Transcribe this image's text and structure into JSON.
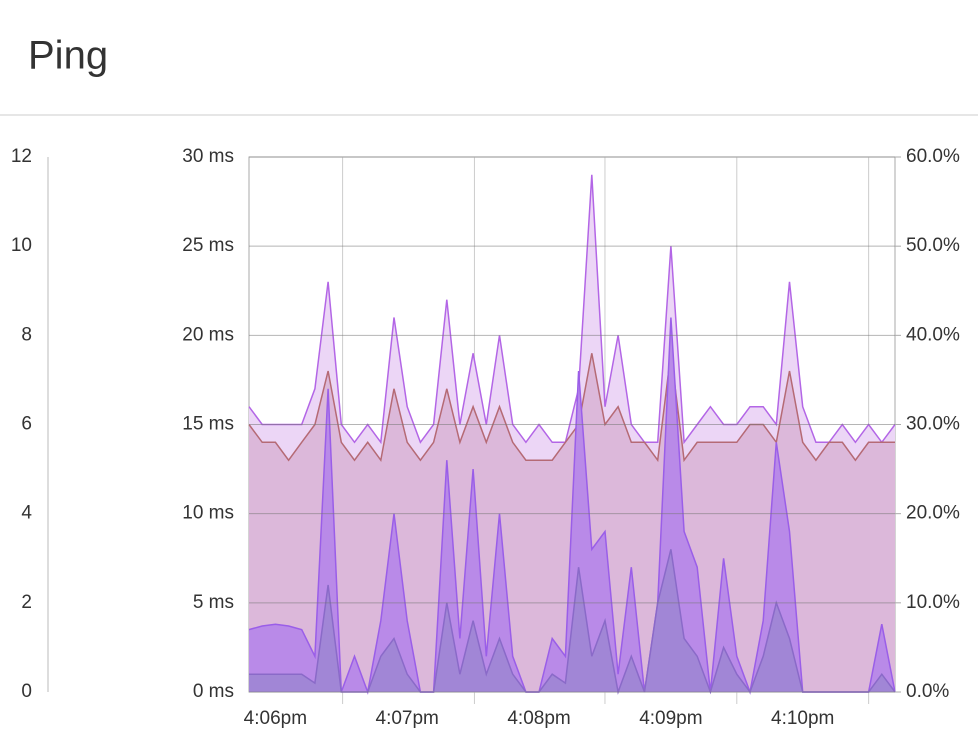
{
  "header": {
    "title": "Ping"
  },
  "chart_data": {
    "type": "area",
    "categories": [
      null,
      null,
      "4:06pm",
      null,
      null,
      null,
      null,
      null,
      null,
      null,
      null,
      null,
      "4:07pm",
      null,
      null,
      null,
      null,
      null,
      null,
      null,
      null,
      null,
      "4:08pm",
      null,
      null,
      null,
      null,
      null,
      null,
      null,
      null,
      null,
      "4:09pm",
      null,
      null,
      null,
      null,
      null,
      null,
      null,
      null,
      null,
      "4:10pm",
      null,
      null,
      null,
      null,
      null,
      null,
      null
    ],
    "ylim": [
      0,
      30
    ],
    "yticks": [
      {
        "value": 0,
        "label": "0 ms"
      },
      {
        "value": 5,
        "label": "5 ms"
      },
      {
        "value": 10,
        "label": "10 ms"
      },
      {
        "value": 15,
        "label": "15 ms"
      },
      {
        "value": 20,
        "label": "20 ms"
      },
      {
        "value": 25,
        "label": "25 ms"
      },
      {
        "value": 30,
        "label": "30 ms"
      }
    ],
    "y2lim": [
      0,
      60
    ],
    "y2ticks": [
      {
        "value": 0,
        "label": "0.0%"
      },
      {
        "value": 10,
        "label": "10.0%"
      },
      {
        "value": 20,
        "label": "20.0%"
      },
      {
        "value": 30,
        "label": "30.0%"
      },
      {
        "value": 40,
        "label": "40.0%"
      },
      {
        "value": 50,
        "label": "50.0%"
      },
      {
        "value": 60,
        "label": "60.0%"
      }
    ],
    "y3lim": [
      0,
      12
    ],
    "y3ticks": [
      0,
      2,
      4,
      6,
      8,
      10,
      12
    ],
    "grid": true,
    "series": [
      {
        "color": "#b366e6",
        "fill": "#ecd6f6",
        "values": [
          16,
          15,
          15,
          15,
          15,
          17,
          23,
          15,
          14,
          15,
          14,
          21,
          16,
          14,
          15,
          22,
          15,
          19,
          15,
          20,
          15,
          14,
          15,
          14,
          14,
          17,
          29,
          16,
          20,
          15,
          14,
          14,
          25,
          14,
          15,
          16,
          15,
          15,
          16,
          16,
          15,
          23,
          16,
          14,
          14,
          15,
          14,
          15,
          14,
          15
        ]
      },
      {
        "color": "#b56a75",
        "fill": "#dcb8da",
        "values": [
          15,
          14,
          14,
          13,
          14,
          15,
          18,
          14,
          13,
          14,
          13,
          17,
          14,
          13,
          14,
          17,
          14,
          16,
          14,
          16,
          14,
          13,
          13,
          13,
          14,
          15,
          19,
          15,
          16,
          14,
          14,
          13,
          19,
          13,
          14,
          14,
          14,
          14,
          15,
          15,
          14,
          18,
          14,
          13,
          14,
          14,
          13,
          14,
          14,
          14
        ]
      },
      {
        "color": "#9a5ee8",
        "fill": "#b98ae8",
        "values": [
          3.5,
          3.7,
          3.8,
          3.7,
          3.5,
          2,
          17,
          0,
          2,
          0,
          4,
          10,
          4,
          0,
          0,
          13,
          3,
          12.5,
          2,
          10,
          2,
          0,
          0,
          3,
          2,
          18,
          8,
          9,
          1,
          7,
          0,
          5,
          21,
          9,
          7,
          0,
          7.5,
          2,
          0,
          4,
          14,
          9,
          0,
          0,
          0,
          0,
          0,
          0,
          3.8,
          0
        ]
      },
      {
        "color": "#8a6ac8",
        "fill": "#a186d6",
        "values": [
          1,
          1,
          1,
          1,
          1,
          0.5,
          6,
          0,
          0,
          0,
          2,
          3,
          1,
          0,
          0,
          5,
          1,
          4,
          1,
          3,
          1,
          0,
          0,
          1,
          0.5,
          7,
          2,
          4,
          0,
          2,
          0,
          5,
          8,
          3,
          2,
          0,
          2.5,
          1,
          0,
          2,
          5,
          3,
          0,
          0,
          0,
          0,
          0,
          0,
          1,
          0
        ]
      }
    ]
  }
}
